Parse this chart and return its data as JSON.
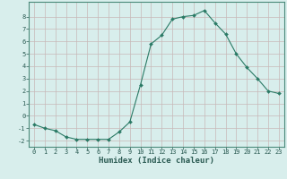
{
  "x": [
    0,
    1,
    2,
    3,
    4,
    5,
    6,
    7,
    8,
    9,
    10,
    11,
    12,
    13,
    14,
    15,
    16,
    17,
    18,
    19,
    20,
    21,
    22,
    23
  ],
  "y": [
    -0.7,
    -1.0,
    -1.2,
    -1.7,
    -1.9,
    -1.9,
    -1.9,
    -1.9,
    -1.3,
    -0.5,
    2.5,
    5.8,
    6.5,
    7.8,
    8.0,
    8.1,
    8.5,
    7.5,
    6.6,
    5.0,
    3.9,
    3.0,
    2.0,
    1.8
  ],
  "line_color": "#2a7a65",
  "marker": "D",
  "marker_size": 2.0,
  "bg_color": "#d8eeec",
  "grid_color": "#c8b8b8",
  "xlabel": "Humidex (Indice chaleur)",
  "xlim": [
    -0.5,
    23.5
  ],
  "ylim": [
    -2.5,
    9.2
  ],
  "yticks": [
    -2,
    -1,
    0,
    1,
    2,
    3,
    4,
    5,
    6,
    7,
    8
  ],
  "xticks": [
    0,
    1,
    2,
    3,
    4,
    5,
    6,
    7,
    8,
    9,
    10,
    11,
    12,
    13,
    14,
    15,
    16,
    17,
    18,
    19,
    20,
    21,
    22,
    23
  ],
  "tick_fontsize": 5.0,
  "xlabel_fontsize": 6.5
}
